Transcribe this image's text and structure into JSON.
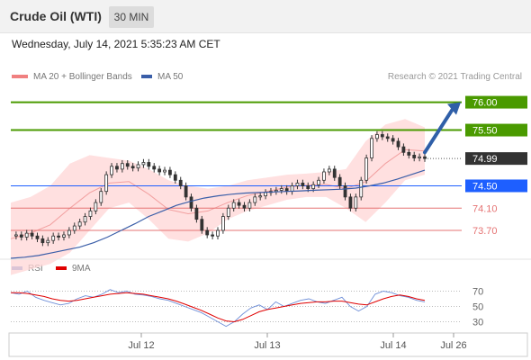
{
  "header": {
    "title": "Crude Oil (WTI)",
    "timeframe": "30 MIN"
  },
  "datetime": "Wednesday, July 14, 2021 5:35:23 AM CET",
  "legend": {
    "bollinger_label": "MA 20 + Bollinger Bands",
    "ma50_label": "MA 50",
    "credit": "Research © 2021 Trading Central",
    "rsi_label": "RSI",
    "ma9_label": "9MA"
  },
  "colors": {
    "resistance": "#4a9a00",
    "support": "#e57373",
    "pivot": "#1e5fff",
    "price": "#333333",
    "bollinger": "#ffd6d6",
    "ma50": "#3a5ea8",
    "rsi": "#6f8fd8",
    "ma9": "#e00000"
  },
  "chart_data": [
    {
      "type": "line",
      "title": "Crude Oil (WTI) 30 MIN",
      "x_ticks": [
        "Jul 12",
        "Jul 13",
        "Jul 14",
        "Jul 26"
      ],
      "ylim": [
        73.2,
        76.3
      ],
      "levels": [
        {
          "value": 76.0,
          "label": "76.00",
          "kind": "resistance"
        },
        {
          "value": 75.5,
          "label": "75.50",
          "kind": "resistance"
        },
        {
          "value": 74.99,
          "label": "74.99",
          "kind": "price"
        },
        {
          "value": 74.5,
          "label": "74.50",
          "kind": "pivot"
        },
        {
          "value": 74.1,
          "label": "74.10",
          "kind": "support"
        },
        {
          "value": 73.7,
          "label": "73.70",
          "kind": "support"
        }
      ],
      "price_series": [
        73.6,
        73.62,
        73.58,
        73.65,
        73.6,
        73.55,
        73.48,
        73.52,
        73.6,
        73.58,
        73.62,
        73.7,
        73.78,
        73.85,
        73.95,
        74.05,
        74.2,
        74.4,
        74.7,
        74.85,
        74.8,
        74.9,
        74.85,
        74.82,
        74.88,
        74.92,
        74.85,
        74.8,
        74.75,
        74.78,
        74.7,
        74.6,
        74.5,
        74.3,
        74.1,
        73.9,
        73.7,
        73.62,
        73.6,
        73.7,
        73.95,
        74.1,
        74.2,
        74.15,
        74.1,
        74.2,
        74.3,
        74.32,
        74.38,
        74.4,
        74.42,
        74.45,
        74.4,
        74.5,
        74.55,
        74.5,
        74.45,
        74.52,
        74.6,
        74.75,
        74.8,
        74.65,
        74.5,
        74.3,
        74.1,
        74.3,
        74.6,
        75.0,
        75.35,
        75.42,
        75.38,
        75.35,
        75.3,
        75.2,
        75.1,
        75.05,
        75.0,
        75.02,
        74.99
      ],
      "ma50_series": [
        73.2,
        73.22,
        73.25,
        73.3,
        73.35,
        73.4,
        73.48,
        73.58,
        73.7,
        73.82,
        73.95,
        74.05,
        74.15,
        74.22,
        74.28,
        74.32,
        74.35,
        74.37,
        74.38,
        74.39,
        74.4,
        74.41,
        74.42,
        74.43,
        74.44,
        74.46,
        74.5,
        74.55,
        74.62,
        74.7,
        74.78
      ],
      "bollinger_upper": [
        74.2,
        74.3,
        74.5,
        74.9,
        75.05,
        75.0,
        74.95,
        74.8,
        74.6,
        74.5,
        74.45,
        74.5,
        74.6,
        74.65,
        74.7,
        74.72,
        74.75,
        74.8,
        75.3,
        75.6,
        75.7,
        75.55
      ],
      "bollinger_lower": [
        72.9,
        73.0,
        73.1,
        73.3,
        73.7,
        74.1,
        74.2,
        73.9,
        73.55,
        73.5,
        73.65,
        73.9,
        74.05,
        74.15,
        74.25,
        74.3,
        74.3,
        74.1,
        73.85,
        74.2,
        74.6,
        74.7
      ],
      "forecast_target": 76.0
    },
    {
      "type": "line",
      "title": "RSI",
      "ylim": [
        20,
        80
      ],
      "y_ticks": [
        70,
        50,
        30
      ],
      "series": [
        {
          "name": "RSI",
          "values": [
            68,
            66,
            70,
            62,
            58,
            55,
            52,
            54,
            60,
            64,
            62,
            66,
            72,
            68,
            70,
            66,
            65,
            63,
            60,
            58,
            54,
            50,
            46,
            42,
            36,
            30,
            24,
            30,
            40,
            48,
            52,
            46,
            56,
            50,
            54,
            58,
            60,
            56,
            54,
            58,
            62,
            50,
            44,
            50,
            66,
            70,
            68,
            64,
            62,
            58,
            56
          ]
        },
        {
          "name": "9MA",
          "values": [
            68,
            68,
            67,
            65,
            63,
            60,
            58,
            57,
            58,
            60,
            62,
            64,
            66,
            67,
            68,
            67,
            66,
            64,
            62,
            60,
            57,
            53,
            49,
            45,
            40,
            35,
            31,
            30,
            33,
            38,
            43,
            46,
            48,
            50,
            52,
            54,
            55,
            56,
            56,
            57,
            57,
            55,
            53,
            52,
            56,
            60,
            63,
            65,
            63,
            60,
            58
          ]
        }
      ]
    }
  ]
}
